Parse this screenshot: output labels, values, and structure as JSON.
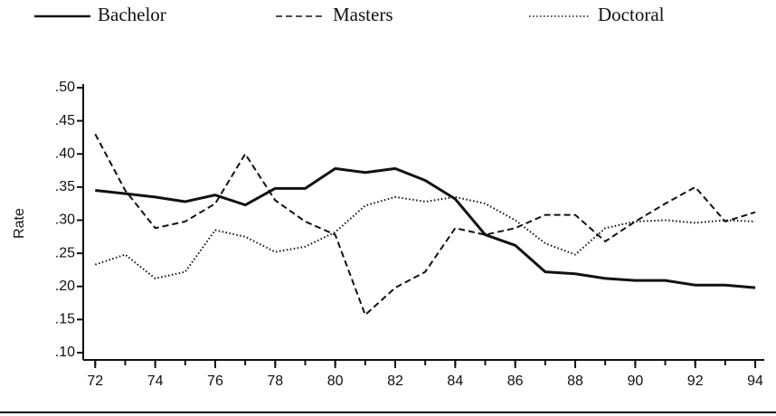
{
  "chart_data": {
    "type": "line",
    "y_label": "Rate",
    "x": [
      72,
      73,
      74,
      75,
      76,
      77,
      78,
      79,
      80,
      81,
      82,
      83,
      84,
      85,
      86,
      87,
      88,
      89,
      90,
      91,
      92,
      93,
      94
    ],
    "series": [
      {
        "name": "Bachelor",
        "color": "#111111",
        "style": "solid",
        "values": [
          0.345,
          0.34,
          0.335,
          0.328,
          0.338,
          0.323,
          0.348,
          0.348,
          0.378,
          0.372,
          0.378,
          0.36,
          0.332,
          0.278,
          0.262,
          0.222,
          0.219,
          0.212,
          0.209,
          0.209,
          0.202,
          0.202,
          0.198
        ]
      },
      {
        "name": "Masters",
        "color": "#111111",
        "style": "dashed",
        "values": [
          0.43,
          0.345,
          0.288,
          0.298,
          0.325,
          0.4,
          0.33,
          0.298,
          0.278,
          0.157,
          0.198,
          0.222,
          0.288,
          0.278,
          0.288,
          0.308,
          0.308,
          0.268,
          0.298,
          0.325,
          0.35,
          0.298,
          0.312
        ]
      },
      {
        "name": "Doctoral",
        "color": "#111111",
        "style": "dotted",
        "values": [
          0.233,
          0.248,
          0.212,
          0.222,
          0.285,
          0.275,
          0.252,
          0.26,
          0.282,
          0.322,
          0.335,
          0.328,
          0.335,
          0.325,
          0.3,
          0.265,
          0.248,
          0.288,
          0.298,
          0.3,
          0.296,
          0.3,
          0.298
        ]
      }
    ],
    "xlim": [
      71.6,
      94.3
    ],
    "xticks": [
      72,
      74,
      76,
      78,
      80,
      82,
      84,
      86,
      88,
      90,
      92,
      94
    ],
    "ylim": [
      0.089,
      0.5
    ],
    "yticks": [
      {
        "value": 0.1,
        "label": ".10"
      },
      {
        "value": 0.15,
        "label": ".15"
      },
      {
        "value": 0.2,
        "label": ".20"
      },
      {
        "value": 0.25,
        "label": ".25"
      },
      {
        "value": 0.3,
        "label": ".30"
      },
      {
        "value": 0.35,
        "label": ".35"
      },
      {
        "value": 0.4,
        "label": ".40"
      },
      {
        "value": 0.45,
        "label": ".45"
      },
      {
        "value": 0.5,
        "label": ".50"
      }
    ],
    "grid": false,
    "legend": "top"
  }
}
